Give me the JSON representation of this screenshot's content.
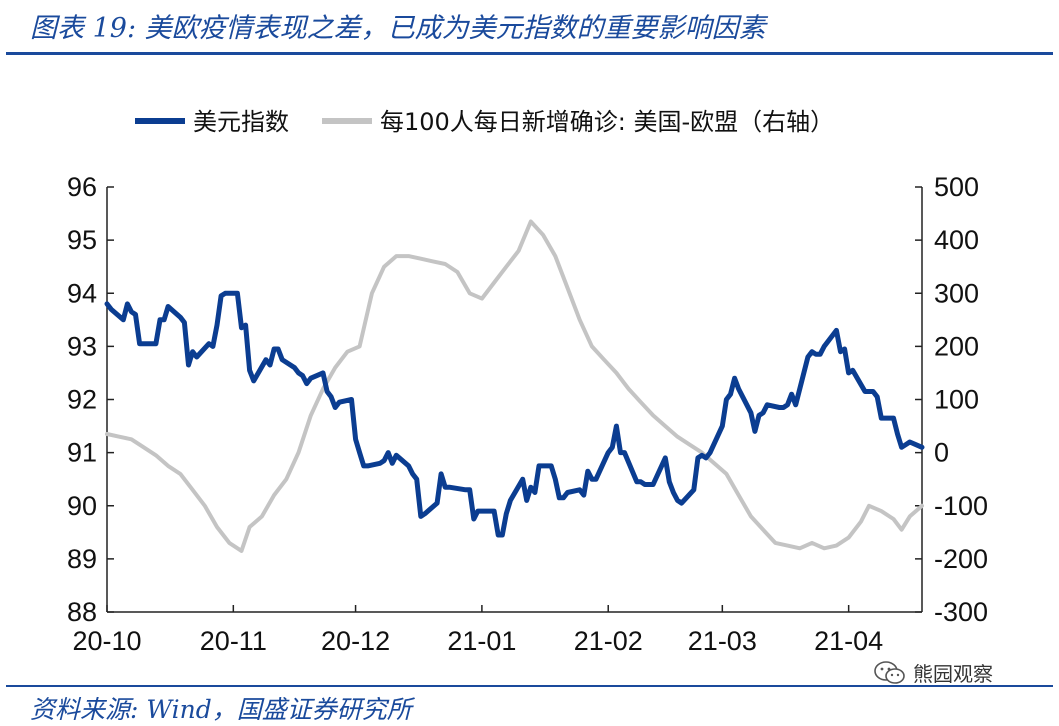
{
  "header": {
    "title": "图表 19:  美欧疫情表现之差，已成为美元指数的重要影响因素"
  },
  "footer": {
    "source": "资料来源:  Wind，国盛证券研究所"
  },
  "watermark": {
    "text": "熊园观察",
    "icon": "wechat-icon"
  },
  "colors": {
    "accent": "#1a4a9c",
    "usd": "#0b3d91",
    "cases": "#c4c4c4"
  },
  "chart_data": {
    "type": "line",
    "title": "",
    "legend_placement": "top-center",
    "grid": false,
    "x_range": [
      "2020-10-01",
      "2021-04-19"
    ],
    "x_ticks": [
      {
        "date": "2020-10-01",
        "label": "20-10"
      },
      {
        "date": "2020-11-01",
        "label": "20-11"
      },
      {
        "date": "2020-12-01",
        "label": "20-12"
      },
      {
        "date": "2021-01-01",
        "label": "21-01"
      },
      {
        "date": "2021-02-01",
        "label": "21-02"
      },
      {
        "date": "2021-03-01",
        "label": "21-03"
      },
      {
        "date": "2021-04-01",
        "label": "21-04"
      }
    ],
    "y_left": {
      "min": 88,
      "max": 96,
      "ticks": [
        "88",
        "89",
        "90",
        "91",
        "92",
        "93",
        "94",
        "95",
        "96"
      ]
    },
    "y_right": {
      "min": -300,
      "max": 500,
      "ticks": [
        "-300",
        "-200",
        "-100",
        "0",
        "100",
        "200",
        "300",
        "400",
        "500"
      ]
    },
    "series": [
      {
        "name": "美元指数",
        "axis": "left",
        "color": "#0b3d91",
        "points": [
          [
            "2020-10-01",
            93.8
          ],
          [
            "2020-10-02",
            93.7
          ],
          [
            "2020-10-05",
            93.5
          ],
          [
            "2020-10-06",
            93.8
          ],
          [
            "2020-10-07",
            93.65
          ],
          [
            "2020-10-08",
            93.6
          ],
          [
            "2020-10-09",
            93.05
          ],
          [
            "2020-10-12",
            93.05
          ],
          [
            "2020-10-13",
            93.05
          ],
          [
            "2020-10-14",
            93.5
          ],
          [
            "2020-10-15",
            93.5
          ],
          [
            "2020-10-16",
            93.75
          ],
          [
            "2020-10-19",
            93.55
          ],
          [
            "2020-10-20",
            93.45
          ],
          [
            "2020-10-21",
            92.65
          ],
          [
            "2020-10-22",
            92.9
          ],
          [
            "2020-10-23",
            92.8
          ],
          [
            "2020-10-26",
            93.05
          ],
          [
            "2020-10-27",
            93.0
          ],
          [
            "2020-10-28",
            93.4
          ],
          [
            "2020-10-29",
            93.95
          ],
          [
            "2020-10-30",
            94.0
          ],
          [
            "2020-11-02",
            94.0
          ],
          [
            "2020-11-03",
            93.35
          ],
          [
            "2020-11-04",
            93.4
          ],
          [
            "2020-11-05",
            92.55
          ],
          [
            "2020-11-06",
            92.35
          ],
          [
            "2020-11-09",
            92.75
          ],
          [
            "2020-11-10",
            92.65
          ],
          [
            "2020-11-11",
            92.95
          ],
          [
            "2020-11-12",
            92.95
          ],
          [
            "2020-11-13",
            92.75
          ],
          [
            "2020-11-16",
            92.6
          ],
          [
            "2020-11-17",
            92.5
          ],
          [
            "2020-11-18",
            92.45
          ],
          [
            "2020-11-19",
            92.3
          ],
          [
            "2020-11-20",
            92.4
          ],
          [
            "2020-11-23",
            92.5
          ],
          [
            "2020-11-24",
            92.15
          ],
          [
            "2020-11-25",
            92.05
          ],
          [
            "2020-11-26",
            91.85
          ],
          [
            "2020-11-27",
            91.95
          ],
          [
            "2020-11-30",
            92.0
          ],
          [
            "2020-12-01",
            91.25
          ],
          [
            "2020-12-02",
            91.0
          ],
          [
            "2020-12-03",
            90.75
          ],
          [
            "2020-12-04",
            90.75
          ],
          [
            "2020-12-07",
            90.8
          ],
          [
            "2020-12-08",
            90.85
          ],
          [
            "2020-12-09",
            91.0
          ],
          [
            "2020-12-10",
            90.8
          ],
          [
            "2020-12-11",
            90.95
          ],
          [
            "2020-12-14",
            90.75
          ],
          [
            "2020-12-15",
            90.6
          ],
          [
            "2020-12-16",
            90.5
          ],
          [
            "2020-12-17",
            89.8
          ],
          [
            "2020-12-18",
            89.85
          ],
          [
            "2020-12-21",
            90.05
          ],
          [
            "2020-12-22",
            90.6
          ],
          [
            "2020-12-23",
            90.35
          ],
          [
            "2020-12-24",
            90.35
          ],
          [
            "2020-12-28",
            90.3
          ],
          [
            "2020-12-29",
            90.3
          ],
          [
            "2020-12-30",
            89.75
          ],
          [
            "2020-12-31",
            89.9
          ],
          [
            "2021-01-04",
            89.9
          ],
          [
            "2021-01-05",
            89.45
          ],
          [
            "2021-01-06",
            89.45
          ],
          [
            "2021-01-07",
            89.85
          ],
          [
            "2021-01-08",
            90.1
          ],
          [
            "2021-01-11",
            90.5
          ],
          [
            "2021-01-12",
            90.1
          ],
          [
            "2021-01-13",
            90.35
          ],
          [
            "2021-01-14",
            90.25
          ],
          [
            "2021-01-15",
            90.75
          ],
          [
            "2021-01-18",
            90.75
          ],
          [
            "2021-01-19",
            90.5
          ],
          [
            "2021-01-20",
            90.15
          ],
          [
            "2021-01-21",
            90.15
          ],
          [
            "2021-01-22",
            90.25
          ],
          [
            "2021-01-25",
            90.3
          ],
          [
            "2021-01-26",
            90.2
          ],
          [
            "2021-01-27",
            90.65
          ],
          [
            "2021-01-28",
            90.5
          ],
          [
            "2021-01-29",
            90.5
          ],
          [
            "2021-02-01",
            91.0
          ],
          [
            "2021-02-02",
            91.1
          ],
          [
            "2021-02-03",
            91.5
          ],
          [
            "2021-02-04",
            91.0
          ],
          [
            "2021-02-05",
            91.0
          ],
          [
            "2021-02-08",
            90.45
          ],
          [
            "2021-02-09",
            90.45
          ],
          [
            "2021-02-10",
            90.4
          ],
          [
            "2021-02-11",
            90.4
          ],
          [
            "2021-02-12",
            90.4
          ],
          [
            "2021-02-15",
            90.9
          ],
          [
            "2021-02-16",
            90.45
          ],
          [
            "2021-02-17",
            90.25
          ],
          [
            "2021-02-18",
            90.1
          ],
          [
            "2021-02-19",
            90.05
          ],
          [
            "2021-02-22",
            90.3
          ],
          [
            "2021-02-23",
            90.9
          ],
          [
            "2021-02-24",
            90.95
          ],
          [
            "2021-02-25",
            90.9
          ],
          [
            "2021-02-26",
            91.0
          ],
          [
            "2021-03-01",
            91.5
          ],
          [
            "2021-03-02",
            92.0
          ],
          [
            "2021-03-03",
            92.1
          ],
          [
            "2021-03-04",
            92.4
          ],
          [
            "2021-03-05",
            92.2
          ],
          [
            "2021-03-08",
            91.75
          ],
          [
            "2021-03-09",
            91.4
          ],
          [
            "2021-03-10",
            91.7
          ],
          [
            "2021-03-11",
            91.75
          ],
          [
            "2021-03-12",
            91.9
          ],
          [
            "2021-03-15",
            91.85
          ],
          [
            "2021-03-16",
            91.85
          ],
          [
            "2021-03-17",
            91.9
          ],
          [
            "2021-03-18",
            92.1
          ],
          [
            "2021-03-19",
            91.9
          ],
          [
            "2021-03-22",
            92.8
          ],
          [
            "2021-03-23",
            92.9
          ],
          [
            "2021-03-24",
            92.85
          ],
          [
            "2021-03-25",
            92.85
          ],
          [
            "2021-03-26",
            93.0
          ],
          [
            "2021-03-29",
            93.3
          ],
          [
            "2021-03-30",
            92.9
          ],
          [
            "2021-03-31",
            92.95
          ],
          [
            "2021-04-01",
            92.5
          ],
          [
            "2021-04-02",
            92.55
          ],
          [
            "2021-04-05",
            92.15
          ],
          [
            "2021-04-06",
            92.15
          ],
          [
            "2021-04-07",
            92.15
          ],
          [
            "2021-04-08",
            92.05
          ],
          [
            "2021-04-09",
            91.65
          ],
          [
            "2021-04-12",
            91.65
          ],
          [
            "2021-04-13",
            91.35
          ],
          [
            "2021-04-14",
            91.1
          ],
          [
            "2021-04-15",
            91.15
          ],
          [
            "2021-04-16",
            91.2
          ],
          [
            "2021-04-19",
            91.1
          ]
        ]
      },
      {
        "name": "每100人每日新增确诊:  美国-欧盟（右轴）",
        "axis": "right",
        "color": "#c4c4c4",
        "points": [
          [
            "2020-10-01",
            35
          ],
          [
            "2020-10-04",
            30
          ],
          [
            "2020-10-07",
            25
          ],
          [
            "2020-10-10",
            10
          ],
          [
            "2020-10-13",
            -5
          ],
          [
            "2020-10-16",
            -25
          ],
          [
            "2020-10-19",
            -40
          ],
          [
            "2020-10-22",
            -70
          ],
          [
            "2020-10-25",
            -100
          ],
          [
            "2020-10-28",
            -140
          ],
          [
            "2020-10-31",
            -170
          ],
          [
            "2020-11-03",
            -185
          ],
          [
            "2020-11-05",
            -140
          ],
          [
            "2020-11-08",
            -120
          ],
          [
            "2020-11-11",
            -80
          ],
          [
            "2020-11-14",
            -50
          ],
          [
            "2020-11-17",
            0
          ],
          [
            "2020-11-20",
            70
          ],
          [
            "2020-11-23",
            120
          ],
          [
            "2020-11-26",
            160
          ],
          [
            "2020-11-29",
            190
          ],
          [
            "2020-12-02",
            200
          ],
          [
            "2020-12-05",
            300
          ],
          [
            "2020-12-08",
            350
          ],
          [
            "2020-12-11",
            370
          ],
          [
            "2020-12-14",
            370
          ],
          [
            "2020-12-17",
            365
          ],
          [
            "2020-12-20",
            360
          ],
          [
            "2020-12-23",
            355
          ],
          [
            "2020-12-26",
            340
          ],
          [
            "2020-12-29",
            300
          ],
          [
            "2021-01-01",
            290
          ],
          [
            "2021-01-04",
            320
          ],
          [
            "2021-01-07",
            350
          ],
          [
            "2021-01-10",
            380
          ],
          [
            "2021-01-13",
            435
          ],
          [
            "2021-01-16",
            410
          ],
          [
            "2021-01-19",
            370
          ],
          [
            "2021-01-22",
            310
          ],
          [
            "2021-01-25",
            250
          ],
          [
            "2021-01-28",
            200
          ],
          [
            "2021-01-31",
            175
          ],
          [
            "2021-02-03",
            150
          ],
          [
            "2021-02-06",
            120
          ],
          [
            "2021-02-09",
            95
          ],
          [
            "2021-02-12",
            70
          ],
          [
            "2021-02-15",
            50
          ],
          [
            "2021-02-18",
            30
          ],
          [
            "2021-02-21",
            15
          ],
          [
            "2021-02-24",
            0
          ],
          [
            "2021-02-27",
            -20
          ],
          [
            "2021-03-02",
            -40
          ],
          [
            "2021-03-05",
            -80
          ],
          [
            "2021-03-08",
            -120
          ],
          [
            "2021-03-11",
            -145
          ],
          [
            "2021-03-14",
            -170
          ],
          [
            "2021-03-17",
            -175
          ],
          [
            "2021-03-20",
            -180
          ],
          [
            "2021-03-23",
            -170
          ],
          [
            "2021-03-26",
            -180
          ],
          [
            "2021-03-29",
            -175
          ],
          [
            "2021-04-01",
            -160
          ],
          [
            "2021-04-04",
            -130
          ],
          [
            "2021-04-06",
            -100
          ],
          [
            "2021-04-09",
            -110
          ],
          [
            "2021-04-12",
            -125
          ],
          [
            "2021-04-14",
            -145
          ],
          [
            "2021-04-16",
            -120
          ],
          [
            "2021-04-19",
            -100
          ]
        ]
      }
    ]
  }
}
